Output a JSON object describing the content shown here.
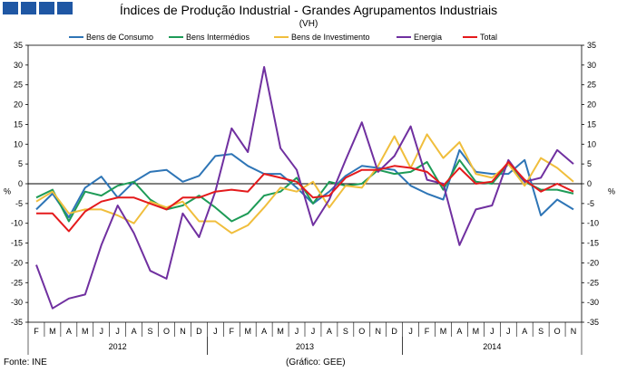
{
  "header": {
    "title": "Índices de Produção Industrial - Grandes Agrupamentos Industriais",
    "subtitle": "(VH)"
  },
  "footer": {
    "source": "Fonte: INE",
    "credit": "(Gráfico: GEE)"
  },
  "chart_data": {
    "type": "line",
    "title": "Índices de Produção Industrial - Grandes Agrupamentos Industriais",
    "subtitle": "(VH)",
    "ylabel_left": "%",
    "ylabel_right": "%",
    "ylim": [
      -35,
      35
    ],
    "yticks": [
      35,
      30,
      25,
      20,
      15,
      10,
      5,
      0,
      -5,
      -10,
      -15,
      -20,
      -25,
      -30,
      -35
    ],
    "grid": false,
    "legend": "top",
    "x": [
      "F",
      "M",
      "A",
      "M",
      "J",
      "J",
      "A",
      "S",
      "O",
      "N",
      "D",
      "J",
      "F",
      "M",
      "A",
      "M",
      "J",
      "J",
      "A",
      "S",
      "O",
      "N",
      "D",
      "J",
      "F",
      "M",
      "A",
      "M",
      "J",
      "J",
      "A",
      "S",
      "O",
      "N"
    ],
    "year_labels": [
      {
        "label": "2012",
        "first_index": 0,
        "last_index": 10
      },
      {
        "label": "2013",
        "first_index": 11,
        "last_index": 22
      },
      {
        "label": "2014",
        "first_index": 23,
        "last_index": 33
      }
    ],
    "series": [
      {
        "name": "Bens de Consumo",
        "color": "#2e75b6",
        "values": [
          -6.5,
          -2.5,
          -8.5,
          -1.0,
          1.8,
          -3.5,
          0.5,
          3.0,
          3.5,
          0.5,
          2.0,
          7.0,
          7.5,
          4.5,
          2.5,
          2.5,
          -1.0,
          -5.0,
          -2.0,
          2.0,
          4.5,
          4.0,
          3.5,
          -0.5,
          -2.5,
          -4.0,
          8.5,
          3.0,
          2.5,
          2.5,
          6.0,
          -8.0,
          -4.0,
          -6.5
        ]
      },
      {
        "name": "Bens Intermédios",
        "color": "#1e9b57",
        "values": [
          -3.5,
          -1.5,
          -9.5,
          -2.0,
          -3.0,
          -0.5,
          0.5,
          -4.0,
          -6.5,
          -5.5,
          -3.0,
          -6.0,
          -9.5,
          -7.5,
          -3.0,
          -2.0,
          1.5,
          -5.0,
          0.5,
          -0.5,
          0.0,
          3.5,
          2.5,
          3.0,
          5.5,
          -1.5,
          6.0,
          0.5,
          0.0,
          5.0,
          0.5,
          -1.5,
          -1.5,
          -2.5
        ]
      },
      {
        "name": "Bens de Investimento",
        "color": "#f0be3c",
        "values": [
          -4.5,
          -2.0,
          -7.5,
          -6.5,
          -6.5,
          -8.0,
          -10.0,
          -4.5,
          -6.0,
          -4.5,
          -9.5,
          -9.5,
          -12.5,
          -10.5,
          -6.0,
          -1.0,
          -2.0,
          0.5,
          -6.0,
          -0.5,
          -1.0,
          4.5,
          12.0,
          4.0,
          12.5,
          6.5,
          10.5,
          2.5,
          1.5,
          5.0,
          -0.5,
          6.5,
          4.0,
          0.5
        ]
      },
      {
        "name": "Energia",
        "color": "#7030a0",
        "values": [
          -20.5,
          -31.5,
          -29.0,
          -28.0,
          -15.5,
          -5.5,
          -12.5,
          -22.0,
          -24.0,
          -7.5,
          -13.5,
          -2.0,
          14.0,
          8.0,
          29.5,
          9.0,
          3.5,
          -10.5,
          -4.0,
          6.0,
          15.5,
          3.0,
          7.0,
          14.5,
          1.0,
          0.0,
          -15.5,
          -6.5,
          -5.5,
          6.0,
          0.5,
          1.5,
          8.5,
          5.0
        ]
      },
      {
        "name": "Total",
        "color": "#e41a1c",
        "values": [
          -7.5,
          -7.5,
          -12.0,
          -7.0,
          -4.5,
          -3.5,
          -3.5,
          -5.0,
          -6.5,
          -3.5,
          -3.5,
          -2.0,
          -1.5,
          -2.0,
          2.5,
          1.5,
          0.5,
          -3.5,
          -3.0,
          1.5,
          3.5,
          3.5,
          4.5,
          4.0,
          3.0,
          -0.5,
          4.0,
          0.0,
          0.5,
          5.5,
          1.0,
          -2.0,
          0.0,
          -2.0
        ]
      }
    ]
  }
}
